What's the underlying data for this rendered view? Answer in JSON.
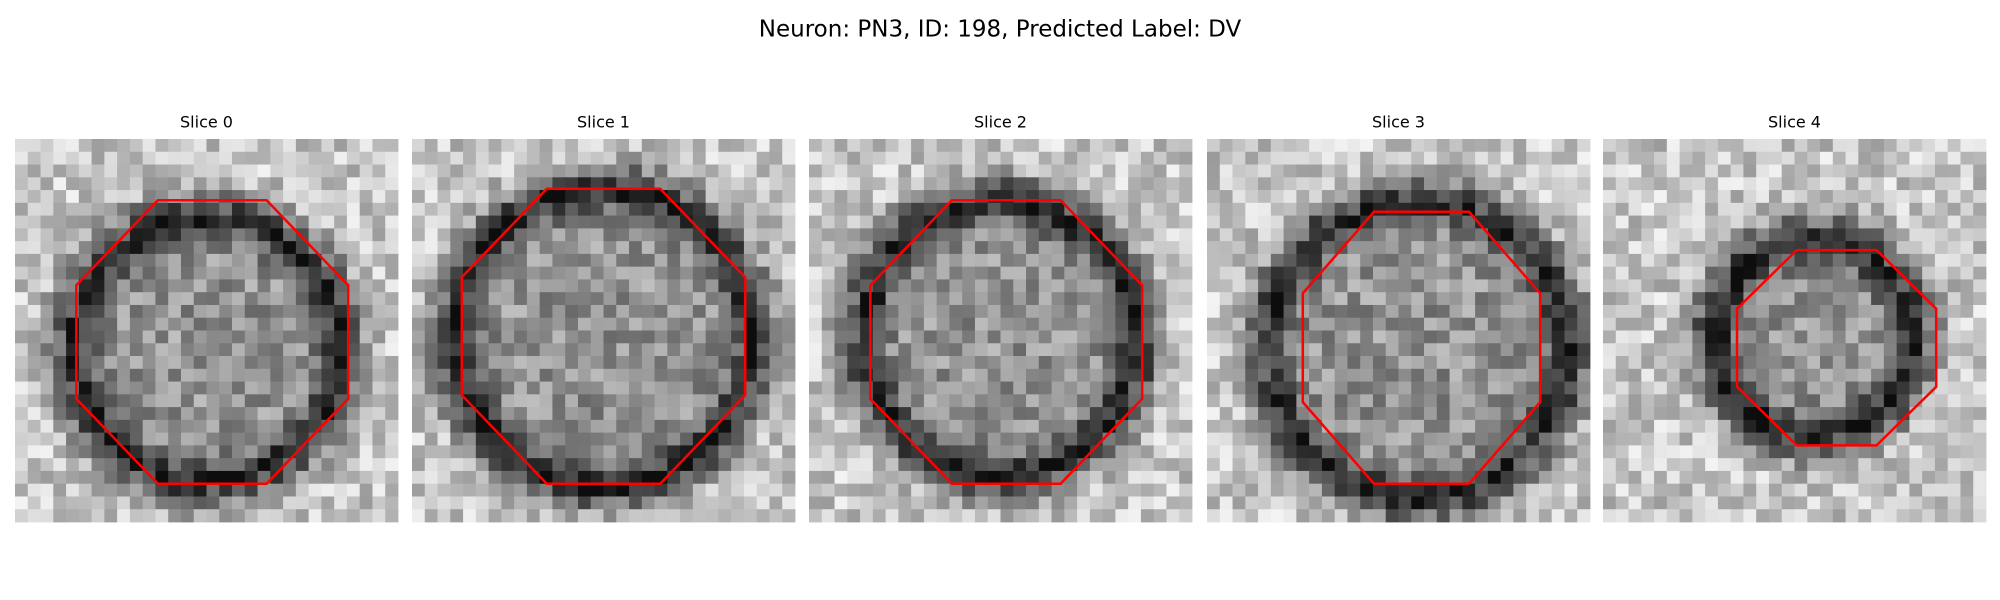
{
  "title": "Neuron: PN3, ID: 198, Predicted Label: DV",
  "panels": [
    {
      "title": "Slice 0"
    },
    {
      "title": "Slice 1"
    },
    {
      "title": "Slice 2"
    },
    {
      "title": "Slice 3"
    },
    {
      "title": "Slice 4"
    }
  ]
}
